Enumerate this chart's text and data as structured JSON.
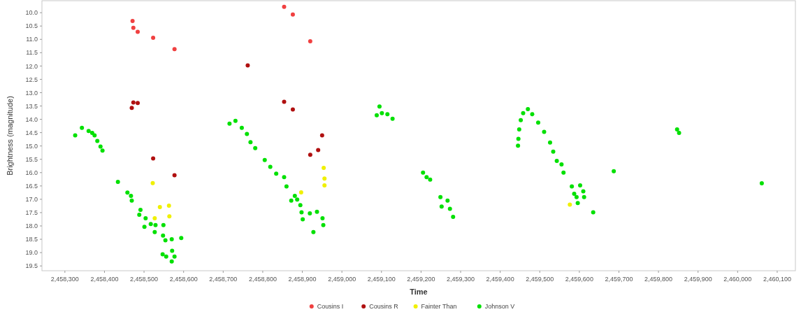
{
  "chart_data": {
    "type": "scatter",
    "xlabel": "Time",
    "ylabel": "Brightness (magnitude)",
    "xlim": [
      2458242,
      2460146
    ],
    "ylim": [
      19.68,
      9.55
    ],
    "xticks": [
      {
        "value": 2458300,
        "label": "2,458,300"
      },
      {
        "value": 2458400,
        "label": "2,458,400"
      },
      {
        "value": 2458500,
        "label": "2,458,500"
      },
      {
        "value": 2458600,
        "label": "2,458,600"
      },
      {
        "value": 2458700,
        "label": "2,458,700"
      },
      {
        "value": 2458800,
        "label": "2,458,800"
      },
      {
        "value": 2458900,
        "label": "2,458,900"
      },
      {
        "value": 2459000,
        "label": "2,459,000"
      },
      {
        "value": 2459100,
        "label": "2,459,100"
      },
      {
        "value": 2459200,
        "label": "2,459,200"
      },
      {
        "value": 2459300,
        "label": "2,459,300"
      },
      {
        "value": 2459400,
        "label": "2,459,400"
      },
      {
        "value": 2459500,
        "label": "2,459,500"
      },
      {
        "value": 2459600,
        "label": "2,459,600"
      },
      {
        "value": 2459700,
        "label": "2,459,700"
      },
      {
        "value": 2459800,
        "label": "2,459,800"
      },
      {
        "value": 2459900,
        "label": "2,459,900"
      },
      {
        "value": 2460000,
        "label": "2,460,000"
      },
      {
        "value": 2460100,
        "label": "2,460,100"
      }
    ],
    "yticks": [
      {
        "value": 10,
        "label": "10.0"
      },
      {
        "value": 10.5,
        "label": "10.5"
      },
      {
        "value": 11,
        "label": "11.0"
      },
      {
        "value": 11.5,
        "label": "11.5"
      },
      {
        "value": 12,
        "label": "12.0"
      },
      {
        "value": 12.5,
        "label": "12.5"
      },
      {
        "value": 13,
        "label": "13.0"
      },
      {
        "value": 13.5,
        "label": "13.5"
      },
      {
        "value": 14,
        "label": "14.0"
      },
      {
        "value": 14.5,
        "label": "14.5"
      },
      {
        "value": 15,
        "label": "15.0"
      },
      {
        "value": 15.5,
        "label": "15.5"
      },
      {
        "value": 16,
        "label": "16.0"
      },
      {
        "value": 16.5,
        "label": "16.5"
      },
      {
        "value": 17,
        "label": "17.0"
      },
      {
        "value": 17.5,
        "label": "17.5"
      },
      {
        "value": 18,
        "label": "18.0"
      },
      {
        "value": 18.5,
        "label": "18.5"
      },
      {
        "value": 19,
        "label": "19.0"
      },
      {
        "value": 19.5,
        "label": "19.5"
      }
    ],
    "grid": false,
    "legend": "bottom",
    "marker": "circle",
    "series": [
      {
        "name": "Cousins I",
        "color": "#f04040",
        "x": [
          2458471,
          2458473,
          2458484,
          2458523,
          2458577,
          2458854,
          2458876,
          2458920
        ],
        "values": [
          10.31,
          10.57,
          10.72,
          10.94,
          11.37,
          9.78,
          10.07,
          11.07
        ]
      },
      {
        "name": "Cousins R",
        "color": "#b01010",
        "x": [
          2458469,
          2458473,
          2458484,
          2458523,
          2458577,
          2458762,
          2458854,
          2458876,
          2458950,
          2458940,
          2458920
        ],
        "values": [
          13.57,
          13.37,
          13.39,
          15.47,
          16.1,
          11.98,
          13.34,
          13.63,
          14.6,
          15.15,
          15.33
        ]
      },
      {
        "name": "Fainter Than",
        "color": "#f0f000",
        "x": [
          2458522,
          2458540,
          2458563,
          2458564,
          2458527,
          2458954,
          2458956,
          2458956,
          2458897,
          2459576
        ],
        "values": [
          16.39,
          17.29,
          17.24,
          17.64,
          17.71,
          15.82,
          16.22,
          16.48,
          16.74,
          17.2
        ]
      },
      {
        "name": "Johnson V",
        "color": "#00e000",
        "x": [
          2458326,
          2458343,
          2458360,
          2458369,
          2458375,
          2458382,
          2458390,
          2458395,
          2458434,
          2458458,
          2458467,
          2458469,
          2458491,
          2458488,
          2458504,
          2458501,
          2458517,
          2458529,
          2458527,
          2458549,
          2458548,
          2458554,
          2458570,
          2458571,
          2458547,
          2458556,
          2458577,
          2458570,
          2458594,
          2458716,
          2458731,
          2458747,
          2458760,
          2458769,
          2458781,
          2458805,
          2458819,
          2458834,
          2458854,
          2458860,
          2458872,
          2458887,
          2458895,
          2458898,
          2458901,
          2458919,
          2458937,
          2458928,
          2458951,
          2458953,
          2458881,
          2459095,
          2459088,
          2459101,
          2459115,
          2459128,
          2459205,
          2459214,
          2459223,
          2459249,
          2459252,
          2459267,
          2459273,
          2459281,
          2459445,
          2459446,
          2459448,
          2459452,
          2459458,
          2459470,
          2459481,
          2459496,
          2459511,
          2459526,
          2459534,
          2459543,
          2459555,
          2459560,
          2459581,
          2459602,
          2459587,
          2459610,
          2459593,
          2459612,
          2459596,
          2459635,
          2459687,
          2459847,
          2459852,
          2460061
        ],
        "values": [
          14.6,
          14.32,
          14.44,
          14.51,
          14.6,
          14.81,
          15.02,
          15.17,
          16.35,
          16.75,
          16.87,
          17.05,
          17.4,
          17.58,
          17.71,
          18.03,
          17.93,
          17.97,
          18.23,
          17.97,
          18.36,
          18.54,
          18.5,
          18.93,
          19.06,
          19.15,
          19.15,
          19.33,
          18.45,
          14.16,
          14.06,
          14.32,
          14.55,
          14.86,
          15.08,
          15.53,
          15.78,
          16.04,
          16.17,
          16.52,
          17.05,
          17.01,
          17.22,
          17.49,
          17.75,
          17.53,
          17.47,
          18.23,
          17.71,
          17.97,
          16.87,
          13.52,
          13.85,
          13.77,
          13.81,
          13.98,
          16.0,
          16.17,
          16.26,
          16.92,
          17.27,
          17.05,
          17.36,
          17.66,
          14.99,
          14.73,
          14.38,
          14.03,
          13.77,
          13.62,
          13.81,
          14.12,
          14.47,
          14.87,
          15.21,
          15.56,
          15.69,
          16.0,
          16.52,
          16.48,
          16.79,
          16.7,
          16.92,
          16.92,
          17.14,
          17.49,
          15.95,
          14.38,
          14.51,
          16.4
        ]
      }
    ]
  }
}
